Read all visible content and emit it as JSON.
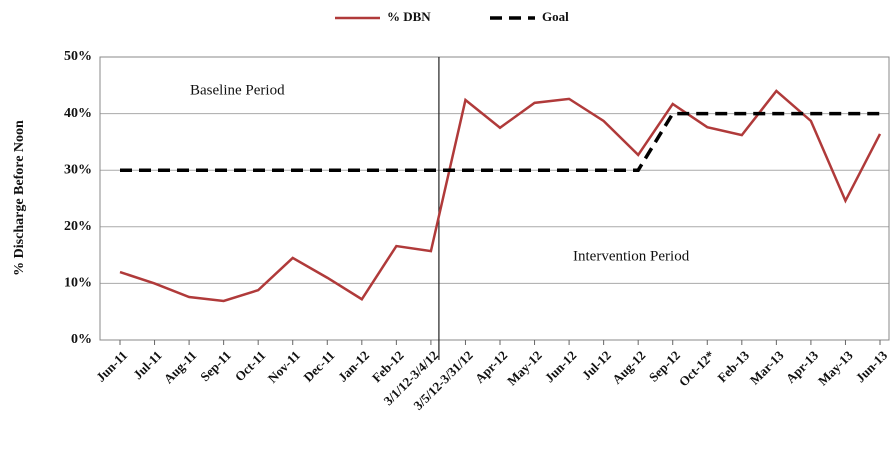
{
  "chart_data": {
    "type": "line",
    "y_label": "% Discharge Before Noon",
    "annotations": [
      "Baseline Period",
      "Intervention Period"
    ],
    "categories": [
      "Jun-11",
      "Jul-11",
      "Aug-11",
      "Sep-11",
      "Oct-11",
      "Nov-11",
      "Dec-11",
      "Jan-12",
      "Feb-12",
      "3/1/12-3/4/12",
      "3/5/12-3/31/12",
      "Apr-12",
      "May-12",
      "Jun-12",
      "Jul-12",
      "Aug-12",
      "Sep-12",
      "Oct-12*",
      "Feb-13",
      "Mar-13",
      "Apr-13",
      "May-13",
      "Jun-13"
    ],
    "series": [
      {
        "name": "% DBN",
        "color": "#b03a3a",
        "values": [
          12,
          10,
          7.6,
          6.9,
          8.8,
          14.5,
          11,
          7.2,
          16.6,
          15.7,
          42.4,
          37.5,
          41.9,
          42.6,
          38.7,
          32.7,
          41.7,
          37.6,
          36.2,
          44,
          38.7,
          24.6,
          36.4
        ]
      },
      {
        "name": "Goal",
        "color": "#000000",
        "dashed": true,
        "values": [
          30,
          30,
          30,
          30,
          30,
          30,
          30,
          30,
          30,
          30,
          30,
          30,
          30,
          30,
          30,
          30,
          40,
          40,
          40,
          40,
          40,
          40,
          40
        ]
      }
    ],
    "ylim": [
      0,
      50
    ],
    "yticks": [
      {
        "value": 0,
        "label": "0%"
      },
      {
        "value": 10,
        "label": "10%"
      },
      {
        "value": 20,
        "label": "20%"
      },
      {
        "value": 30,
        "label": "30%"
      },
      {
        "value": 40,
        "label": "40%"
      },
      {
        "value": 50,
        "label": "50%"
      }
    ],
    "grid": true,
    "legend": "top"
  }
}
